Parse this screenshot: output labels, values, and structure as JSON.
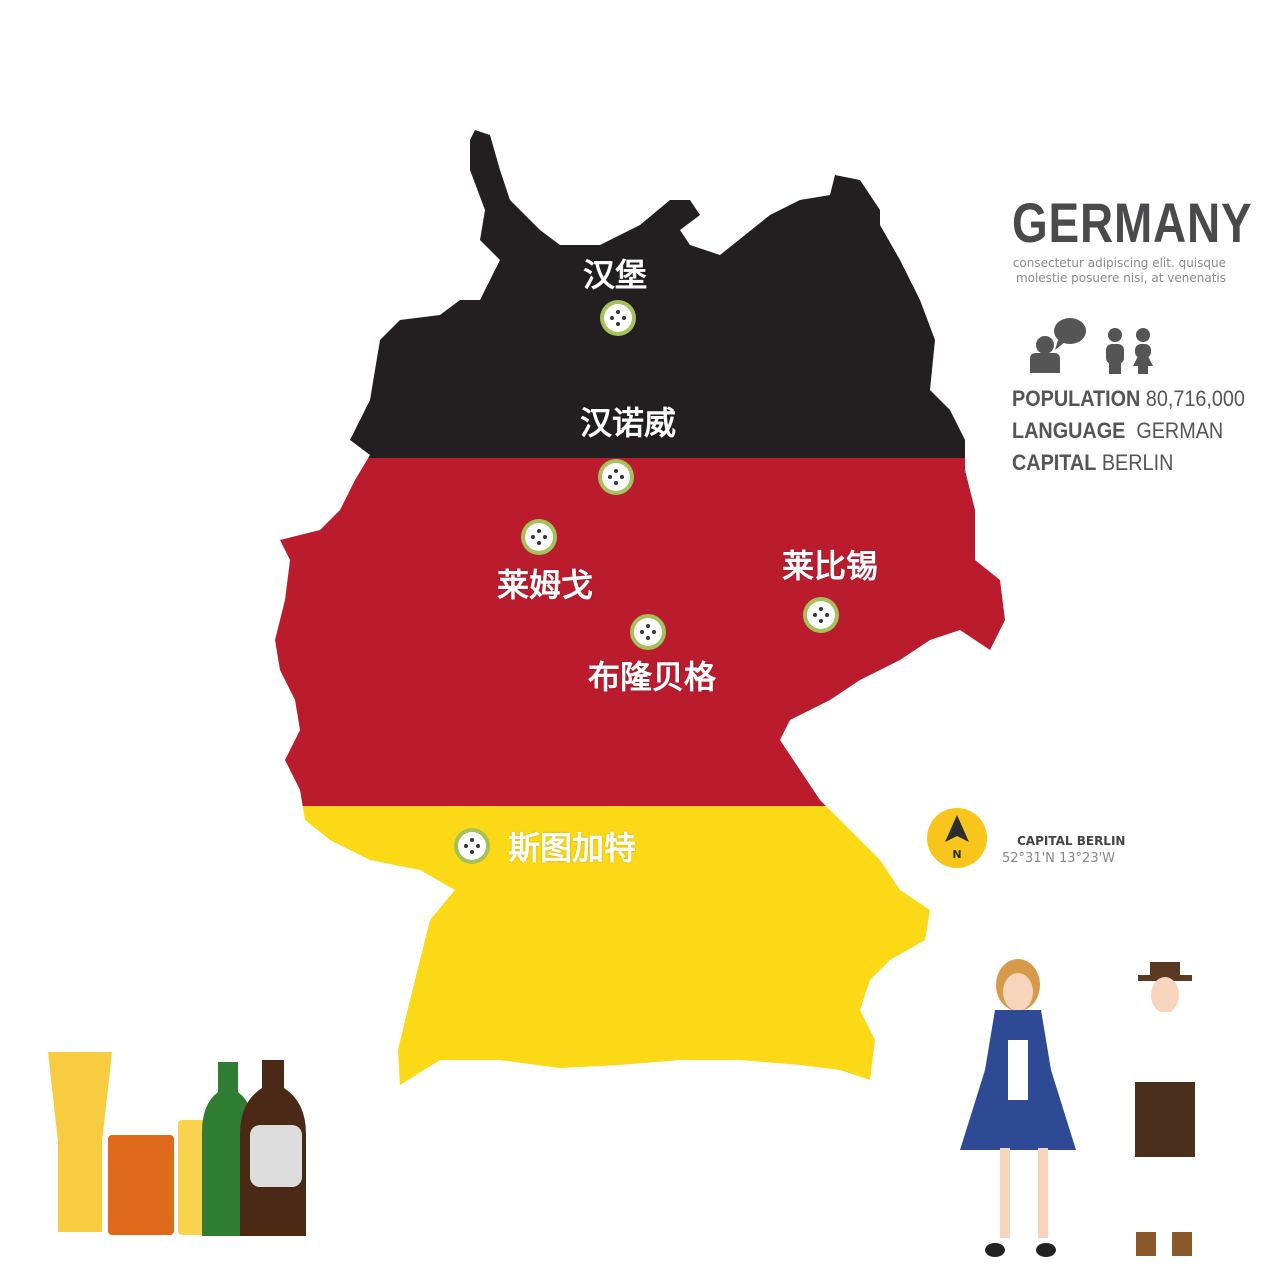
{
  "title": "GERMANY",
  "description": "consectetur adipiscing elit. quisque molestie posuere nisi, at venenatis",
  "stats": [
    {
      "label": "POPULATION",
      "value": "80,716,000"
    },
    {
      "label": "LANGUAGE",
      "value": "GERMAN"
    },
    {
      "label": "CAPITAL",
      "value": "BERLIN"
    }
  ],
  "capital_marker": {
    "title": "CAPITAL BERLIN",
    "coords": "52°31'N 13°23'W",
    "compass_letter": "N"
  },
  "cities": [
    {
      "name": "汉堡"
    },
    {
      "name": "汉诺威"
    },
    {
      "name": "莱姆戈"
    },
    {
      "name": "莱比锡"
    },
    {
      "name": "布隆贝格"
    },
    {
      "name": "斯图加特"
    }
  ],
  "colors": {
    "black": "#231f20",
    "red": "#ba1c2e",
    "gold": "#fcd916",
    "text": "#4a4a4c",
    "marker_ring": "#a5c15a"
  },
  "icons": [
    "speech-person-icon",
    "man-icon",
    "woman-icon",
    "compass-icon",
    "city-marker-icon",
    "beer-glass-icon",
    "beer-bottle-icon"
  ]
}
